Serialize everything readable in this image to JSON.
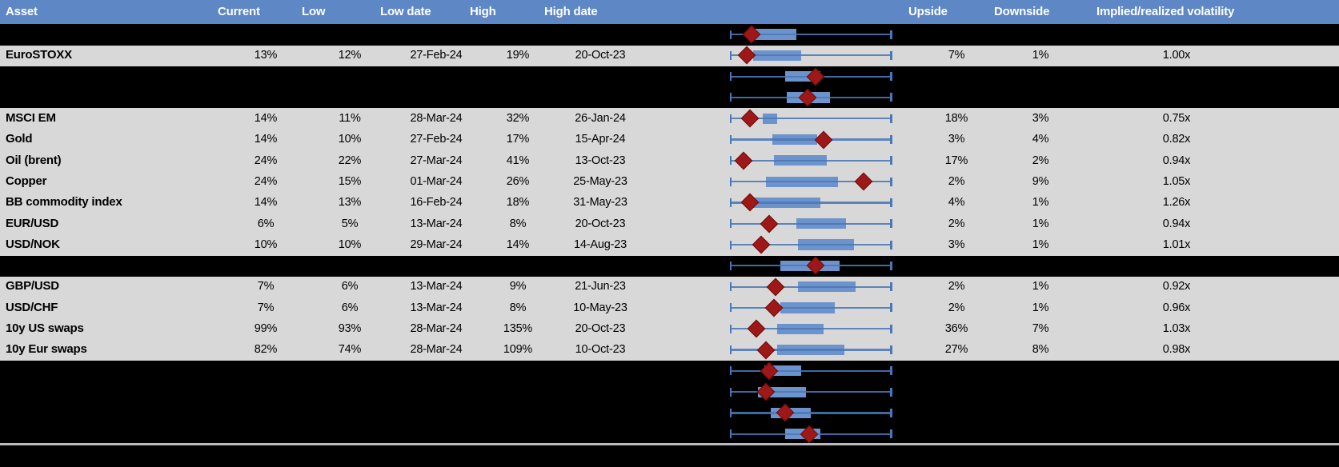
{
  "header": {
    "asset": "Asset",
    "current": "Current",
    "low": "Low",
    "low_date": "Low date",
    "high": "High",
    "high_date": "High date",
    "upside": "Upside",
    "downside": "Downside",
    "implied_realized": "Implied/realized volatility"
  },
  "colors": {
    "header_bg": "#5d87c5",
    "header_text": "#ffffff",
    "row_bg": "#d8d8d8",
    "page_bg": "#000000",
    "box_fill": "#6d93cc",
    "whisker": "#4a77b6",
    "marker": "#9e1818",
    "bottom_rule": "#b9b9b9"
  },
  "chart_data": [
    {
      "type": "table",
      "columns": [
        "Asset",
        "Current",
        "Low",
        "Low date",
        "High",
        "High date",
        "Upside",
        "Downside",
        "Implied/realized volatility"
      ],
      "rows": [
        {
          "asset": "EuroSTOXX",
          "current": "13%",
          "low": "12%",
          "low_date": "27-Feb-24",
          "high": "19%",
          "high_date": "20-Oct-23",
          "upside": "7%",
          "downside": "1%",
          "implied_realized": "1.00x"
        },
        {
          "asset": "MSCI EM",
          "current": "14%",
          "low": "11%",
          "low_date": "28-Mar-24",
          "high": "32%",
          "high_date": "26-Jan-24",
          "upside": "18%",
          "downside": "3%",
          "implied_realized": "0.75x"
        },
        {
          "asset": "Gold",
          "current": "14%",
          "low": "10%",
          "low_date": "27-Feb-24",
          "high": "17%",
          "high_date": "15-Apr-24",
          "upside": "3%",
          "downside": "4%",
          "implied_realized": "0.82x"
        },
        {
          "asset": "Oil (brent)",
          "current": "24%",
          "low": "22%",
          "low_date": "27-Mar-24",
          "high": "41%",
          "high_date": "13-Oct-23",
          "upside": "17%",
          "downside": "2%",
          "implied_realized": "0.94x"
        },
        {
          "asset": "Copper",
          "current": "24%",
          "low": "15%",
          "low_date": "01-Mar-24",
          "high": "26%",
          "high_date": "25-May-23",
          "upside": "2%",
          "downside": "9%",
          "implied_realized": "1.05x"
        },
        {
          "asset": "BB commodity index",
          "current": "14%",
          "low": "13%",
          "low_date": "16-Feb-24",
          "high": "18%",
          "high_date": "31-May-23",
          "upside": "4%",
          "downside": "1%",
          "implied_realized": "1.26x"
        },
        {
          "asset": "EUR/USD",
          "current": "6%",
          "low": "5%",
          "low_date": "13-Mar-24",
          "high": "8%",
          "high_date": "20-Oct-23",
          "upside": "2%",
          "downside": "1%",
          "implied_realized": "0.94x"
        },
        {
          "asset": "USD/NOK",
          "current": "10%",
          "low": "10%",
          "low_date": "29-Mar-24",
          "high": "14%",
          "high_date": "14-Aug-23",
          "upside": "3%",
          "downside": "1%",
          "implied_realized": "1.01x"
        },
        {
          "asset": "GBP/USD",
          "current": "7%",
          "low": "6%",
          "low_date": "13-Mar-24",
          "high": "9%",
          "high_date": "21-Jun-23",
          "upside": "2%",
          "downside": "1%",
          "implied_realized": "0.92x"
        },
        {
          "asset": "USD/CHF",
          "current": "7%",
          "low": "6%",
          "low_date": "13-Mar-24",
          "high": "8%",
          "high_date": "10-May-23",
          "upside": "2%",
          "downside": "1%",
          "implied_realized": "0.96x"
        },
        {
          "asset": "10y US swaps",
          "current": "99%",
          "low": "93%",
          "low_date": "28-Mar-24",
          "high": "135%",
          "high_date": "20-Oct-23",
          "upside": "36%",
          "downside": "7%",
          "implied_realized": "1.03x"
        },
        {
          "asset": "10y Eur swaps",
          "current": "82%",
          "low": "74%",
          "low_date": "28-Mar-24",
          "high": "109%",
          "high_date": "10-Oct-23",
          "upside": "27%",
          "downside": "8%",
          "implied_realized": "0.98x"
        }
      ]
    },
    {
      "type": "boxplot",
      "orientation": "horizontal",
      "marker_shape": "diamond",
      "track_range": [
        0,
        1
      ],
      "whiskers_span_full_track": true,
      "rows": [
        {
          "label": "",
          "box": [
            0.15,
            0.41
          ],
          "marker": 0.13
        },
        {
          "label": "EuroSTOXX",
          "box": [
            0.14,
            0.44
          ],
          "marker": 0.1
        },
        {
          "label": "",
          "box": [
            0.34,
            0.56
          ],
          "marker": 0.53
        },
        {
          "label": "",
          "box": [
            0.35,
            0.62
          ],
          "marker": 0.48
        },
        {
          "label": "MSCI EM",
          "box": [
            0.2,
            0.29
          ],
          "marker": 0.12
        },
        {
          "label": "Gold",
          "box": [
            0.26,
            0.54
          ],
          "marker": 0.58
        },
        {
          "label": "Oil (brent)",
          "box": [
            0.27,
            0.6
          ],
          "marker": 0.08
        },
        {
          "label": "Copper",
          "box": [
            0.22,
            0.67
          ],
          "marker": 0.83
        },
        {
          "label": "BB commodity index",
          "box": [
            0.12,
            0.56
          ],
          "marker": 0.12
        },
        {
          "label": "EUR/USD",
          "box": [
            0.41,
            0.72
          ],
          "marker": 0.24
        },
        {
          "label": "USD/NOK",
          "box": [
            0.42,
            0.77
          ],
          "marker": 0.19
        },
        {
          "label": "",
          "box": [
            0.31,
            0.68
          ],
          "marker": 0.53
        },
        {
          "label": "GBP/USD",
          "box": [
            0.42,
            0.78
          ],
          "marker": 0.28
        },
        {
          "label": "USD/CHF",
          "box": [
            0.31,
            0.65
          ],
          "marker": 0.27
        },
        {
          "label": "10y US swaps",
          "box": [
            0.29,
            0.58
          ],
          "marker": 0.16
        },
        {
          "label": "10y Eur swaps",
          "box": [
            0.29,
            0.71
          ],
          "marker": 0.22
        },
        {
          "label": "",
          "box": [
            0.21,
            0.44
          ],
          "marker": 0.24
        },
        {
          "label": "",
          "box": [
            0.17,
            0.47
          ],
          "marker": 0.22
        },
        {
          "label": "",
          "box": [
            0.25,
            0.5
          ],
          "marker": 0.34
        },
        {
          "label": "",
          "box": [
            0.34,
            0.56
          ],
          "marker": 0.49
        }
      ]
    }
  ]
}
